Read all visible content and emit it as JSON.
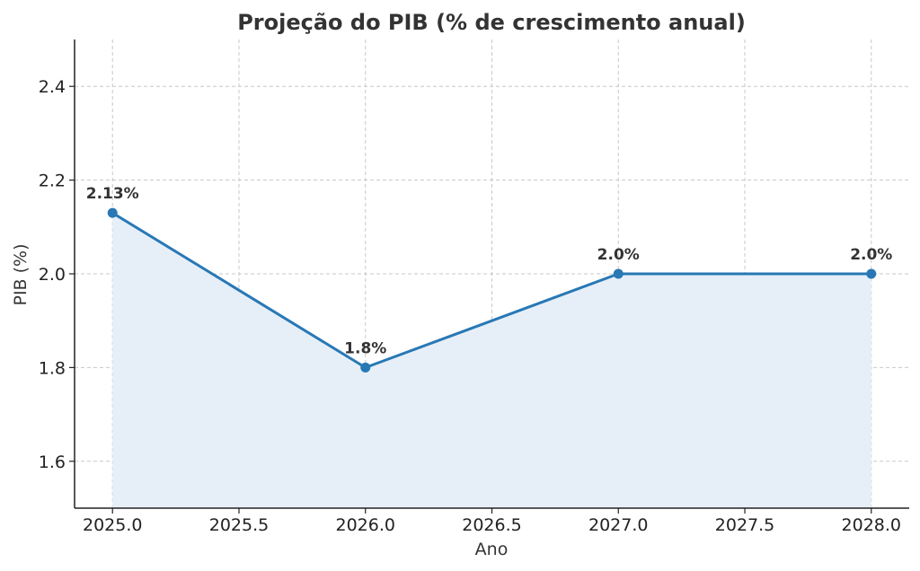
{
  "chart_data": {
    "type": "area",
    "title": "Projeção do PIB (% de crescimento anual)",
    "xlabel": "Ano",
    "ylabel": "PIB (%)",
    "x": [
      2025.0,
      2026.0,
      2027.0,
      2028.0
    ],
    "series": [
      {
        "values": [
          2.13,
          1.8,
          2.0,
          2.0
        ]
      }
    ],
    "data_labels": [
      "2.13%",
      "1.8%",
      "2.0%",
      "2.0%"
    ],
    "xlim": [
      2024.85,
      2028.15
    ],
    "ylim": [
      1.5,
      2.5
    ],
    "xticks": [
      2025.0,
      2025.5,
      2026.0,
      2026.5,
      2027.0,
      2027.5,
      2028.0
    ],
    "xtick_labels": [
      "2025.0",
      "2025.5",
      "2026.0",
      "2026.5",
      "2027.0",
      "2027.5",
      "2028.0"
    ],
    "yticks": [
      1.6,
      1.8,
      2.0,
      2.2,
      2.4
    ],
    "ytick_labels": [
      "1.6",
      "1.8",
      "2.0",
      "2.2",
      "2.4"
    ],
    "grid": true,
    "colors": {
      "line": "#2878b5",
      "fill": "#e6eff8"
    }
  }
}
